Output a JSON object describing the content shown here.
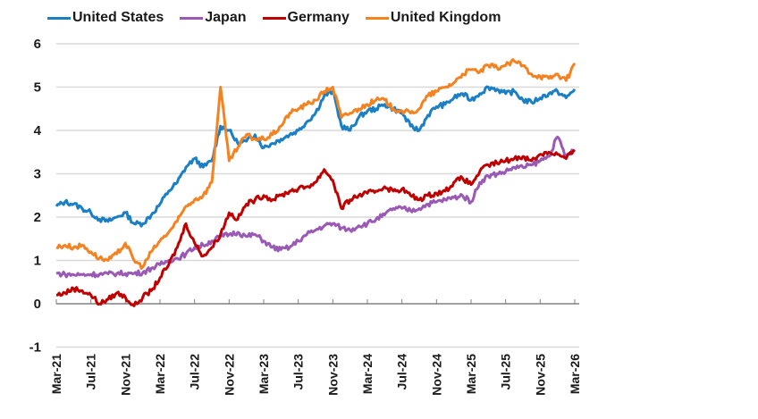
{
  "chart_data": {
    "type": "line",
    "title": "",
    "xlabel": "",
    "ylabel": "",
    "ylim": [
      -1,
      6
    ],
    "yticks": [
      "6",
      "5",
      "4",
      "3",
      "2",
      "1",
      "0",
      "-1"
    ],
    "ytick_values": [
      6,
      5,
      4,
      3,
      2,
      1,
      0,
      -1
    ],
    "xtick_labels": [
      "Mar-21",
      "Jul-21",
      "Nov-21",
      "Mar-22",
      "Jul-22",
      "Nov-22",
      "Mar-23",
      "Jul-23",
      "Nov-23",
      "Mar-24",
      "Jul-24",
      "Nov-24",
      "Mar-25",
      "Jul-25",
      "Nov-25",
      "Mar-26"
    ],
    "grid": true,
    "legend_position": "top",
    "x_months_from_mar21": [
      0,
      1,
      2,
      3,
      4,
      5,
      6,
      7,
      8,
      9,
      10,
      11,
      12,
      13,
      14,
      15,
      16,
      17,
      18,
      19,
      20,
      21,
      22,
      23,
      24,
      25,
      26,
      27,
      28,
      29,
      30,
      31,
      32,
      33,
      34,
      35,
      36,
      37,
      38,
      39,
      40,
      41,
      42,
      43,
      44,
      45,
      46,
      47,
      48,
      49,
      50,
      51,
      52,
      53,
      54,
      55,
      56,
      57,
      58,
      59,
      60
    ],
    "series": [
      {
        "name": "United States",
        "color": "#1a7fc4",
        "values": [
          2.25,
          2.35,
          2.3,
          2.2,
          2.1,
          1.95,
          1.9,
          2.0,
          2.1,
          1.85,
          1.85,
          2.05,
          2.3,
          2.6,
          2.8,
          3.15,
          3.35,
          3.15,
          3.3,
          4.1,
          4.0,
          3.7,
          3.75,
          3.9,
          3.6,
          3.7,
          3.8,
          3.9,
          4.0,
          4.2,
          4.4,
          4.8,
          4.9,
          4.1,
          4.0,
          4.3,
          4.45,
          4.5,
          4.6,
          4.5,
          4.4,
          4.1,
          4.0,
          4.35,
          4.55,
          4.6,
          4.75,
          4.85,
          4.7,
          4.85,
          5.0,
          4.95,
          4.85,
          4.9,
          4.7,
          4.65,
          4.75,
          4.85,
          4.9,
          4.75,
          4.95
        ]
      },
      {
        "name": "Japan",
        "color": "#9b59b6",
        "values": [
          0.7,
          0.68,
          0.67,
          0.67,
          0.68,
          0.68,
          0.69,
          0.7,
          0.7,
          0.7,
          0.72,
          0.82,
          0.9,
          1.0,
          1.05,
          1.15,
          1.3,
          1.35,
          1.45,
          1.55,
          1.6,
          1.65,
          1.55,
          1.6,
          1.45,
          1.3,
          1.25,
          1.3,
          1.45,
          1.6,
          1.7,
          1.8,
          1.85,
          1.75,
          1.7,
          1.8,
          1.85,
          1.95,
          2.05,
          2.2,
          2.2,
          2.15,
          2.2,
          2.3,
          2.35,
          2.4,
          2.45,
          2.5,
          2.35,
          2.8,
          2.95,
          3.0,
          3.05,
          3.15,
          3.15,
          3.2,
          3.3,
          3.4,
          3.85,
          3.4,
          3.55
        ]
      },
      {
        "name": "Germany",
        "color": "#c00000",
        "values": [
          0.2,
          0.25,
          0.35,
          0.3,
          0.2,
          0.0,
          0.1,
          0.25,
          0.15,
          -0.05,
          0.15,
          0.3,
          0.6,
          0.9,
          1.3,
          1.85,
          1.4,
          1.1,
          1.3,
          1.6,
          2.1,
          1.95,
          2.3,
          2.4,
          2.5,
          2.4,
          2.5,
          2.6,
          2.65,
          2.7,
          2.8,
          3.1,
          2.85,
          2.2,
          2.4,
          2.5,
          2.55,
          2.6,
          2.7,
          2.6,
          2.65,
          2.5,
          2.4,
          2.5,
          2.55,
          2.6,
          2.8,
          2.9,
          2.75,
          3.05,
          3.2,
          3.25,
          3.3,
          3.35,
          3.4,
          3.3,
          3.45,
          3.5,
          3.45,
          3.35,
          3.55
        ]
      },
      {
        "name": "United Kingdom",
        "color": "#f58220",
        "values": [
          1.3,
          1.35,
          1.3,
          1.35,
          1.2,
          1.05,
          1.0,
          1.15,
          1.4,
          1.0,
          0.85,
          1.2,
          1.45,
          1.65,
          1.9,
          2.25,
          2.4,
          2.5,
          2.8,
          5.0,
          3.3,
          3.6,
          3.9,
          3.8,
          3.8,
          3.9,
          4.1,
          4.4,
          4.5,
          4.6,
          4.7,
          4.9,
          5.0,
          4.3,
          4.4,
          4.5,
          4.6,
          4.7,
          4.7,
          4.5,
          4.45,
          4.4,
          4.5,
          4.8,
          4.9,
          5.0,
          5.1,
          5.3,
          5.4,
          5.35,
          5.5,
          5.45,
          5.5,
          5.6,
          5.5,
          5.3,
          5.25,
          5.2,
          5.3,
          5.15,
          5.55
        ]
      }
    ]
  }
}
